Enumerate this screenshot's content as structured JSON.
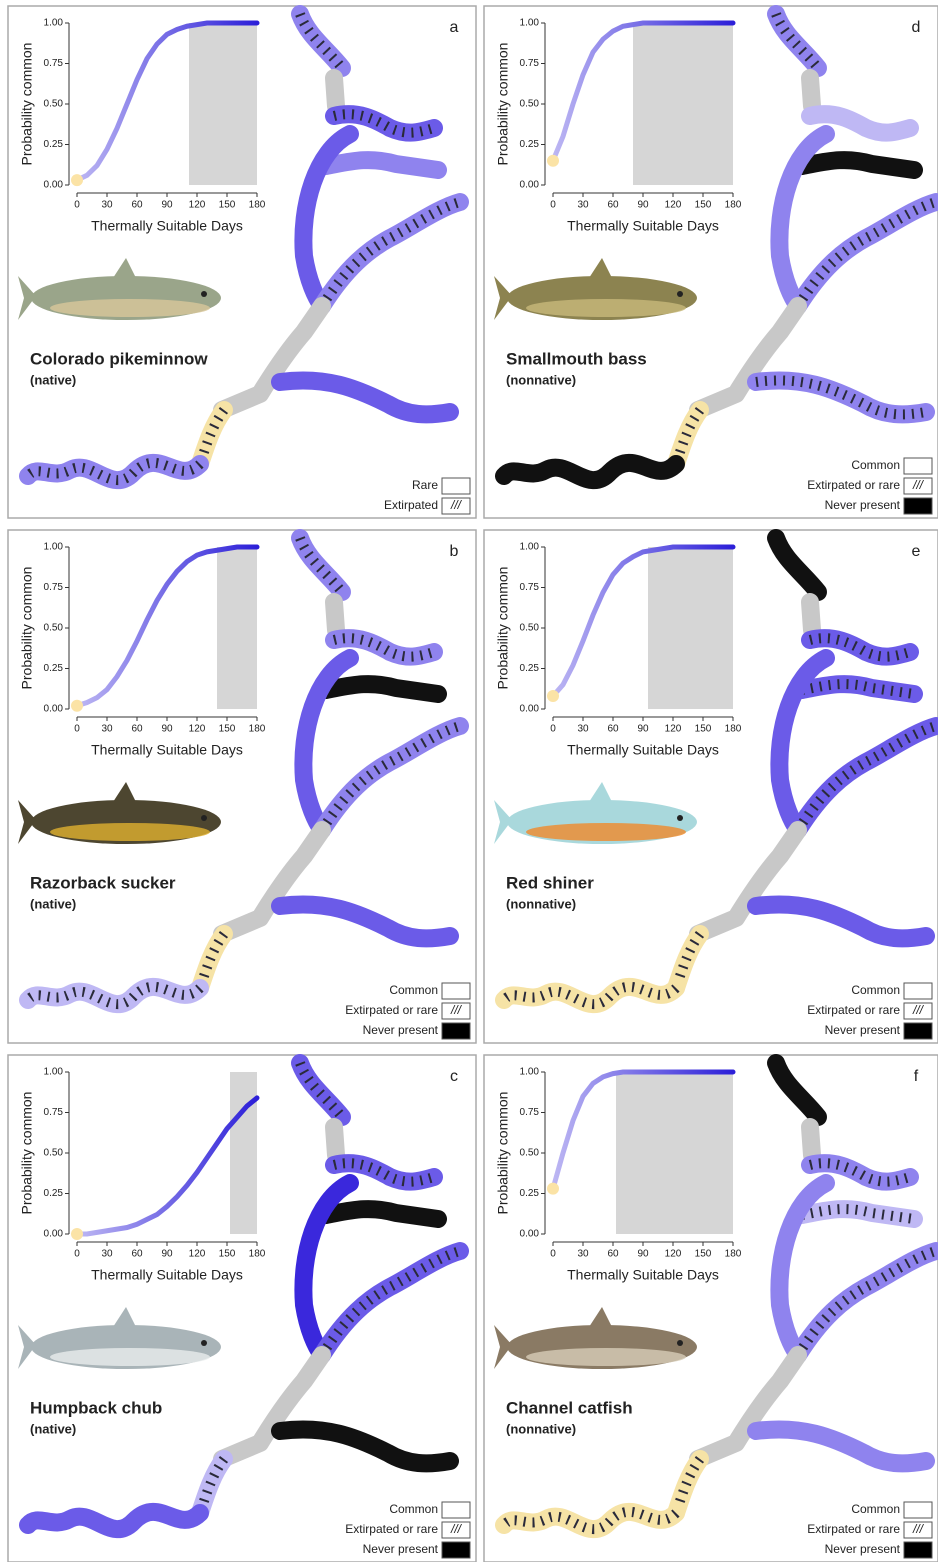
{
  "chart_data": [
    {
      "type": "line",
      "panel": "a",
      "species": "Colorado pikeminnow",
      "status": "(native)",
      "xlabel": "Thermally Suitable Days",
      "ylabel": "Probability common",
      "x": [
        0,
        10,
        20,
        30,
        40,
        50,
        60,
        70,
        80,
        90,
        100,
        110,
        120,
        130,
        140,
        150,
        160,
        170,
        180
      ],
      "values": [
        0.03,
        0.06,
        0.12,
        0.22,
        0.35,
        0.5,
        0.65,
        0.78,
        0.87,
        0.93,
        0.96,
        0.98,
        0.99,
        1,
        1,
        1,
        1,
        1,
        1
      ],
      "xlim": [
        0,
        180
      ],
      "ylim": [
        0,
        1
      ],
      "xticks": [
        0,
        30,
        60,
        90,
        120,
        150,
        180
      ],
      "yticks": [
        {
          "value": 0,
          "label": "0.00"
        },
        {
          "value": 0.25,
          "label": "0.25"
        },
        {
          "value": 0.5,
          "label": "0.50"
        },
        {
          "value": 0.75,
          "label": "0.75"
        },
        {
          "value": 1,
          "label": "1.00"
        }
      ],
      "shaded": [
        112,
        180
      ],
      "color_range": [
        "#bdb7f3",
        "#2c1fd8"
      ],
      "legend": [
        {
          "label": "Rare",
          "swatch": "#ffffff",
          "hatch": false
        },
        {
          "label": "Extirpated",
          "swatch": "#ffffff",
          "hatch": true
        }
      ]
    },
    {
      "type": "line",
      "panel": "b",
      "species": "Razorback sucker",
      "status": "(native)",
      "xlabel": "Thermally Suitable Days",
      "ylabel": "Probability common",
      "x": [
        0,
        10,
        20,
        30,
        40,
        50,
        60,
        70,
        80,
        90,
        100,
        110,
        120,
        130,
        140,
        150,
        160,
        170,
        180
      ],
      "values": [
        0.02,
        0.04,
        0.07,
        0.12,
        0.2,
        0.3,
        0.42,
        0.55,
        0.67,
        0.77,
        0.85,
        0.91,
        0.95,
        0.97,
        0.98,
        0.99,
        1,
        1,
        1
      ],
      "xlim": [
        0,
        180
      ],
      "ylim": [
        0,
        1
      ],
      "xticks": [
        0,
        30,
        60,
        90,
        120,
        150,
        180
      ],
      "yticks": [
        {
          "value": 0,
          "label": "0.00"
        },
        {
          "value": 0.25,
          "label": "0.25"
        },
        {
          "value": 0.5,
          "label": "0.50"
        },
        {
          "value": 0.75,
          "label": "0.75"
        },
        {
          "value": 1,
          "label": "1.00"
        }
      ],
      "shaded": [
        140,
        180
      ],
      "color_range": [
        "#bdb7f3",
        "#2c1fd8"
      ],
      "legend": [
        {
          "label": "Common",
          "swatch": "#ffffff",
          "hatch": false
        },
        {
          "label": "Extirpated or rare",
          "swatch": "#ffffff",
          "hatch": true
        },
        {
          "label": "Never present",
          "swatch": "#000000",
          "hatch": false
        }
      ]
    },
    {
      "type": "line",
      "panel": "c",
      "species": "Humpback chub",
      "status": "(native)",
      "xlabel": "Thermally Suitable Days",
      "ylabel": "Probability common",
      "x": [
        0,
        10,
        20,
        30,
        40,
        50,
        60,
        70,
        80,
        90,
        100,
        110,
        120,
        130,
        140,
        150,
        160,
        170,
        180
      ],
      "values": [
        0,
        0,
        0.01,
        0.02,
        0.03,
        0.04,
        0.06,
        0.09,
        0.12,
        0.17,
        0.23,
        0.3,
        0.38,
        0.47,
        0.56,
        0.65,
        0.72,
        0.79,
        0.84
      ],
      "xlim": [
        0,
        180
      ],
      "ylim": [
        0,
        1
      ],
      "xticks": [
        0,
        30,
        60,
        90,
        120,
        150,
        180
      ],
      "yticks": [
        {
          "value": 0,
          "label": "0.00"
        },
        {
          "value": 0.25,
          "label": "0.25"
        },
        {
          "value": 0.5,
          "label": "0.50"
        },
        {
          "value": 0.75,
          "label": "0.75"
        },
        {
          "value": 1,
          "label": "1.00"
        }
      ],
      "shaded": [
        153,
        180
      ],
      "color_range": [
        "#bdb7f3",
        "#2c1fd8"
      ],
      "legend": [
        {
          "label": "Common",
          "swatch": "#ffffff",
          "hatch": false
        },
        {
          "label": "Extirpated or rare",
          "swatch": "#ffffff",
          "hatch": true
        },
        {
          "label": "Never present",
          "swatch": "#000000",
          "hatch": false
        }
      ]
    },
    {
      "type": "line",
      "panel": "d",
      "species": "Smallmouth bass",
      "status": "(nonnative)",
      "xlabel": "Thermally Suitable Days",
      "ylabel": "Probability common",
      "x": [
        0,
        10,
        20,
        30,
        40,
        50,
        60,
        70,
        80,
        90,
        100,
        110,
        120,
        130,
        140,
        150,
        160,
        170,
        180
      ],
      "values": [
        0.15,
        0.3,
        0.5,
        0.68,
        0.82,
        0.9,
        0.95,
        0.98,
        0.99,
        1,
        1,
        1,
        1,
        1,
        1,
        1,
        1,
        1,
        1
      ],
      "xlim": [
        0,
        180
      ],
      "ylim": [
        0,
        1
      ],
      "xticks": [
        0,
        30,
        60,
        90,
        120,
        150,
        180
      ],
      "yticks": [
        {
          "value": 0,
          "label": "0.00"
        },
        {
          "value": 0.25,
          "label": "0.25"
        },
        {
          "value": 0.5,
          "label": "0.50"
        },
        {
          "value": 0.75,
          "label": "0.75"
        },
        {
          "value": 1,
          "label": "1.00"
        }
      ],
      "shaded": [
        80,
        180
      ],
      "color_range": [
        "#bdb7f3",
        "#2c1fd8"
      ],
      "legend": [
        {
          "label": "Common",
          "swatch": "#ffffff",
          "hatch": false
        },
        {
          "label": "Extirpated or rare",
          "swatch": "#ffffff",
          "hatch": true
        },
        {
          "label": "Never present",
          "swatch": "#000000",
          "hatch": false
        }
      ]
    },
    {
      "type": "line",
      "panel": "e",
      "species": "Red shiner",
      "status": "(nonnative)",
      "xlabel": "Thermally Suitable Days",
      "ylabel": "Probability common",
      "x": [
        0,
        10,
        20,
        30,
        40,
        50,
        60,
        70,
        80,
        90,
        100,
        110,
        120,
        130,
        140,
        150,
        160,
        170,
        180
      ],
      "values": [
        0.08,
        0.15,
        0.27,
        0.42,
        0.58,
        0.72,
        0.83,
        0.9,
        0.94,
        0.97,
        0.98,
        0.99,
        1,
        1,
        1,
        1,
        1,
        1,
        1
      ],
      "xlim": [
        0,
        180
      ],
      "ylim": [
        0,
        1
      ],
      "xticks": [
        0,
        30,
        60,
        90,
        120,
        150,
        180
      ],
      "yticks": [
        {
          "value": 0,
          "label": "0.00"
        },
        {
          "value": 0.25,
          "label": "0.25"
        },
        {
          "value": 0.5,
          "label": "0.50"
        },
        {
          "value": 0.75,
          "label": "0.75"
        },
        {
          "value": 1,
          "label": "1.00"
        }
      ],
      "shaded": [
        95,
        180
      ],
      "color_range": [
        "#bdb7f3",
        "#2c1fd8"
      ],
      "legend": [
        {
          "label": "Common",
          "swatch": "#ffffff",
          "hatch": false
        },
        {
          "label": "Extirpated or rare",
          "swatch": "#ffffff",
          "hatch": true
        },
        {
          "label": "Never present",
          "swatch": "#000000",
          "hatch": false
        }
      ]
    },
    {
      "type": "line",
      "panel": "f",
      "species": "Channel catfish",
      "status": "(nonnative)",
      "xlabel": "Thermally Suitable Days",
      "ylabel": "Probability common",
      "x": [
        0,
        10,
        20,
        30,
        40,
        50,
        60,
        70,
        80,
        90,
        100,
        110,
        120,
        130,
        140,
        150,
        160,
        170,
        180
      ],
      "values": [
        0.28,
        0.5,
        0.7,
        0.85,
        0.93,
        0.97,
        0.99,
        1,
        1,
        1,
        1,
        1,
        1,
        1,
        1,
        1,
        1,
        1,
        1
      ],
      "xlim": [
        0,
        180
      ],
      "ylim": [
        0,
        1
      ],
      "xticks": [
        0,
        30,
        60,
        90,
        120,
        150,
        180
      ],
      "yticks": [
        {
          "value": 0,
          "label": "0.00"
        },
        {
          "value": 0.25,
          "label": "0.25"
        },
        {
          "value": 0.5,
          "label": "0.50"
        },
        {
          "value": 0.75,
          "label": "0.75"
        },
        {
          "value": 1,
          "label": "1.00"
        }
      ],
      "shaded": [
        63,
        180
      ],
      "color_range": [
        "#bdb7f3",
        "#2c1fd8"
      ],
      "legend": [
        {
          "label": "Common",
          "swatch": "#ffffff",
          "hatch": false
        },
        {
          "label": "Extirpated or rare",
          "swatch": "#ffffff",
          "hatch": true
        },
        {
          "label": "Never present",
          "swatch": "#000000",
          "hatch": false
        }
      ]
    }
  ]
}
